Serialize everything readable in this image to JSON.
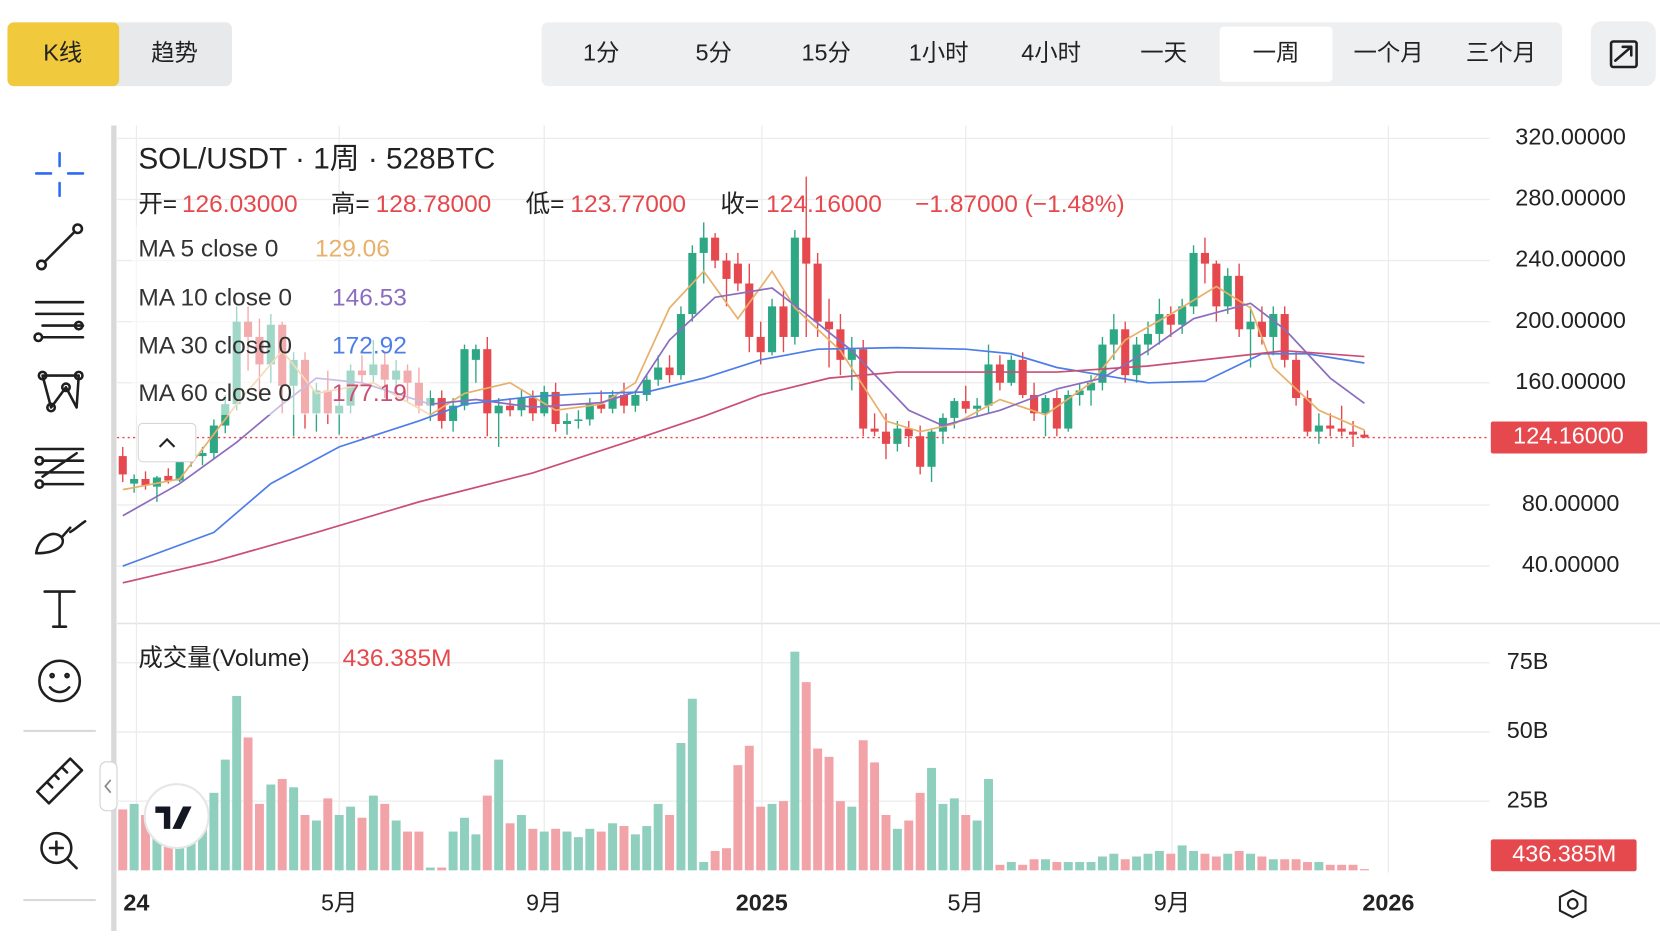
{
  "toolbar": {
    "chart_modes": [
      "K线",
      "趋势"
    ],
    "selected_mode": "K线",
    "intervals": [
      "1分",
      "5分",
      "15分",
      "1小时",
      "4小时",
      "一天",
      "一周",
      "一个月",
      "三个月"
    ],
    "selected_interval": "一周"
  },
  "chart_data": {
    "type": "candlestick",
    "title": "SOL/USDT · 1周 · 528BTC",
    "ohlc_legend": [
      {
        "name": "开=",
        "value": 126.03,
        "label": "126.03000"
      },
      {
        "name": "高=",
        "value": 128.78,
        "label": "128.78000"
      },
      {
        "name": "低=",
        "value": 123.77,
        "label": "123.77000"
      },
      {
        "name": "收=",
        "value": 124.16,
        "label": "124.16000"
      }
    ],
    "change": {
      "value": -1.87,
      "label": "−1.87000 (−1.48%)"
    },
    "up_color": "#2ea784",
    "down_color": "#e5484d",
    "x": [
      0,
      1,
      2,
      3,
      4,
      5,
      6,
      7,
      8,
      9,
      10,
      11,
      12,
      13,
      14,
      15,
      16,
      17,
      18,
      19,
      20,
      21,
      22,
      23,
      24,
      25,
      26,
      27,
      28,
      29,
      30,
      31,
      32,
      33,
      34,
      35,
      36,
      37,
      38,
      39,
      40,
      41,
      42,
      43,
      44,
      45,
      46,
      47,
      48,
      49,
      50,
      51,
      52,
      53,
      54,
      55,
      56,
      57,
      58,
      59,
      60,
      61,
      62,
      63,
      64,
      65,
      66,
      67,
      68,
      69,
      70,
      71,
      72,
      73,
      74,
      75,
      76,
      77,
      78,
      79,
      80,
      81,
      82,
      83,
      84,
      85,
      86,
      87,
      88,
      89,
      90,
      91,
      92,
      93,
      94,
      95,
      96,
      97,
      98,
      99,
      100,
      101,
      102,
      103,
      104,
      105,
      106,
      107,
      108,
      109
    ],
    "open": [
      112,
      94,
      97,
      92,
      99,
      96,
      109,
      112,
      114,
      132,
      146,
      200,
      190,
      172,
      198,
      158,
      175,
      140,
      155,
      140,
      145,
      168,
      165,
      172,
      162,
      168,
      160,
      145,
      150,
      135,
      145,
      175,
      182,
      140,
      145,
      142,
      150,
      140,
      154,
      133,
      135,
      136,
      146,
      143,
      152,
      145,
      152,
      162,
      170,
      165,
      205,
      245,
      255,
      240,
      238,
      225,
      190,
      180,
      210,
      190,
      255,
      238,
      200,
      195,
      175,
      182,
      130,
      128,
      120,
      130,
      125,
      105,
      128,
      137,
      148,
      143,
      145,
      172,
      160,
      175,
      152,
      140,
      150,
      130,
      152,
      155,
      160,
      185,
      195,
      165,
      185,
      192,
      205,
      198,
      210,
      245,
      238,
      210,
      230,
      195,
      200,
      190,
      205,
      175,
      150,
      128,
      132,
      130,
      128,
      126.03
    ],
    "high": [
      118,
      100,
      102,
      99,
      104,
      112,
      116,
      118,
      136,
      152,
      210,
      210,
      202,
      205,
      200,
      180,
      180,
      160,
      168,
      150,
      172,
      178,
      188,
      180,
      175,
      172,
      170,
      155,
      155,
      150,
      185,
      185,
      190,
      150,
      150,
      155,
      155,
      158,
      160,
      140,
      142,
      150,
      155,
      155,
      160,
      155,
      165,
      178,
      178,
      210,
      250,
      265,
      258,
      245,
      245,
      238,
      200,
      215,
      220,
      260,
      295,
      245,
      215,
      205,
      190,
      188,
      140,
      140,
      135,
      135,
      132,
      130,
      140,
      150,
      158,
      150,
      185,
      178,
      178,
      180,
      160,
      152,
      155,
      155,
      160,
      165,
      190,
      205,
      200,
      190,
      200,
      215,
      210,
      215,
      250,
      255,
      240,
      235,
      238,
      210,
      210,
      210,
      210,
      180,
      155,
      140,
      140,
      145,
      135,
      128.78
    ],
    "low": [
      95,
      88,
      90,
      82,
      94,
      95,
      105,
      106,
      110,
      127,
      142,
      168,
      150,
      160,
      140,
      125,
      130,
      128,
      133,
      126,
      140,
      160,
      160,
      150,
      155,
      148,
      140,
      135,
      130,
      128,
      142,
      160,
      125,
      118,
      138,
      138,
      135,
      138,
      128,
      126,
      130,
      132,
      140,
      140,
      140,
      141,
      148,
      158,
      160,
      162,
      200,
      225,
      235,
      210,
      220,
      180,
      172,
      178,
      180,
      185,
      190,
      190,
      170,
      165,
      155,
      125,
      125,
      110,
      115,
      118,
      100,
      95,
      120,
      130,
      140,
      138,
      140,
      155,
      158,
      150,
      135,
      125,
      125,
      128,
      145,
      145,
      155,
      175,
      160,
      160,
      178,
      185,
      190,
      192,
      205,
      225,
      200,
      205,
      190,
      170,
      185,
      178,
      170,
      145,
      125,
      120,
      125,
      125,
      118,
      123.77
    ],
    "close": [
      100,
      97,
      93,
      98,
      96,
      109,
      112,
      114,
      132,
      146,
      200,
      190,
      172,
      198,
      158,
      175,
      140,
      155,
      140,
      145,
      168,
      165,
      172,
      162,
      168,
      160,
      145,
      150,
      135,
      145,
      182,
      182,
      140,
      145,
      142,
      150,
      140,
      154,
      133,
      135,
      136,
      146,
      143,
      152,
      145,
      152,
      162,
      170,
      165,
      205,
      245,
      255,
      240,
      228,
      225,
      190,
      180,
      210,
      190,
      255,
      238,
      200,
      195,
      175,
      182,
      130,
      128,
      120,
      130,
      125,
      105,
      128,
      137,
      148,
      143,
      145,
      172,
      160,
      175,
      152,
      140,
      150,
      130,
      152,
      155,
      160,
      185,
      195,
      165,
      185,
      192,
      205,
      198,
      210,
      245,
      238,
      210,
      230,
      195,
      200,
      190,
      205,
      175,
      150,
      128,
      132,
      130,
      128,
      126.03,
      124.16
    ],
    "series": [
      {
        "name": "MA 5 close 0",
        "color": "#e8b06a",
        "x": [
          0,
          5,
          10,
          14,
          17,
          22,
          27,
          30,
          34,
          38,
          42,
          45,
          48,
          51,
          54,
          57,
          59,
          63,
          67,
          70,
          73,
          77,
          81,
          85,
          88,
          92,
          96,
          99,
          101,
          105,
          109
        ],
        "values": [
          90,
          97,
          146,
          181,
          153,
          160,
          139,
          153,
          160,
          142,
          146,
          160,
          209,
          233,
          202,
          233,
          209,
          181,
          135,
          128,
          133,
          149,
          139,
          160,
          188,
          205,
          223,
          209,
          170,
          142,
          129.06
        ]
      },
      {
        "name": "MA 10 close 0",
        "color": "#8b6cc0",
        "x": [
          0,
          5,
          10,
          14,
          17,
          21,
          27,
          31,
          36,
          42,
          45,
          48,
          52,
          57,
          60,
          64,
          69,
          72,
          77,
          82,
          86,
          90,
          94,
          99,
          102,
          106,
          109
        ],
        "values": [
          73,
          94,
          121,
          146,
          163,
          160,
          146,
          149,
          144,
          147,
          154,
          188,
          216,
          222,
          205,
          181,
          142,
          132,
          142,
          156,
          163,
          181,
          202,
          212,
          195,
          163,
          146.53
        ]
      },
      {
        "name": "MA 30 close 0",
        "color": "#4d7ee8",
        "x": [
          0,
          8,
          13,
          19,
          26,
          30,
          36,
          41,
          46,
          51,
          56,
          61,
          68,
          74,
          78,
          82,
          86,
          90,
          95,
          100,
          104,
          109
        ],
        "values": [
          40,
          62,
          94,
          118,
          135,
          146,
          151,
          153,
          154,
          163,
          175,
          182,
          183,
          182,
          179,
          170,
          165,
          160,
          161,
          179,
          179,
          172.92
        ]
      },
      {
        "name": "MA 60 close 0",
        "color": "#c94f73",
        "x": [
          0,
          8,
          17,
          26,
          36,
          45,
          51,
          56,
          62,
          68,
          75,
          82,
          90,
          96,
          102,
          109
        ],
        "values": [
          29,
          43,
          62,
          82,
          101,
          123,
          138,
          152,
          163,
          167,
          167,
          167,
          171,
          176,
          181,
          177.19
        ]
      }
    ],
    "current_price": {
      "value": 124.16,
      "label": "124.16000"
    },
    "xlim": [
      -0.5,
      120
    ],
    "xticks": [
      {
        "value": 1.2,
        "label": "24"
      },
      {
        "value": 19,
        "label": "5月"
      },
      {
        "value": 37,
        "label": "9月"
      },
      {
        "value": 56.1,
        "label": "2025"
      },
      {
        "value": 74,
        "label": "5月"
      },
      {
        "value": 92.1,
        "label": "9月"
      },
      {
        "value": 111.1,
        "label": "2026"
      }
    ],
    "ylim": [
      3.1,
      328.4
    ],
    "yticks": [
      {
        "value": 320,
        "label": "320.00000"
      },
      {
        "value": 280,
        "label": "280.00000"
      },
      {
        "value": 240,
        "label": "240.00000"
      },
      {
        "value": 200,
        "label": "200.00000"
      },
      {
        "value": 160,
        "label": "160.00000"
      },
      {
        "value": 80,
        "label": "80.00000"
      },
      {
        "value": 40,
        "label": "40.00000"
      }
    ],
    "grid": true,
    "volume": {
      "name": "成交量(Volume)",
      "up_color": "#8fcfbd",
      "down_color": "#f2a3a8",
      "values": [
        22,
        24,
        20,
        18,
        22,
        19,
        21,
        24,
        28,
        40,
        63,
        48,
        24,
        31,
        33,
        30,
        20,
        18,
        26,
        20,
        23,
        19,
        27,
        24,
        18,
        14,
        14,
        1,
        1,
        14,
        19,
        13,
        27,
        40,
        17,
        20,
        15,
        14,
        15,
        14,
        12,
        15,
        14,
        17,
        16,
        13,
        16,
        24,
        20,
        46,
        62,
        3,
        7,
        8,
        38,
        45,
        23,
        24,
        25,
        79,
        68,
        44,
        41,
        25,
        23,
        47,
        39,
        20,
        15,
        18,
        28,
        37,
        24,
        26,
        20,
        18,
        33,
        2,
        3,
        2,
        4,
        4,
        3,
        3,
        3,
        3,
        5,
        6,
        4,
        5,
        6,
        7,
        6,
        9,
        7,
        6,
        5,
        6,
        7,
        6,
        5,
        4,
        4,
        4,
        3,
        3,
        2,
        2,
        2,
        0.436385
      ],
      "current": {
        "value": 0.436385,
        "label": "436.385M"
      },
      "ylim": [
        0,
        83.8
      ],
      "yticks": [
        {
          "value": 75,
          "label": "75B"
        },
        {
          "value": 50,
          "label": "50B"
        },
        {
          "value": 25,
          "label": "25B"
        }
      ]
    }
  }
}
